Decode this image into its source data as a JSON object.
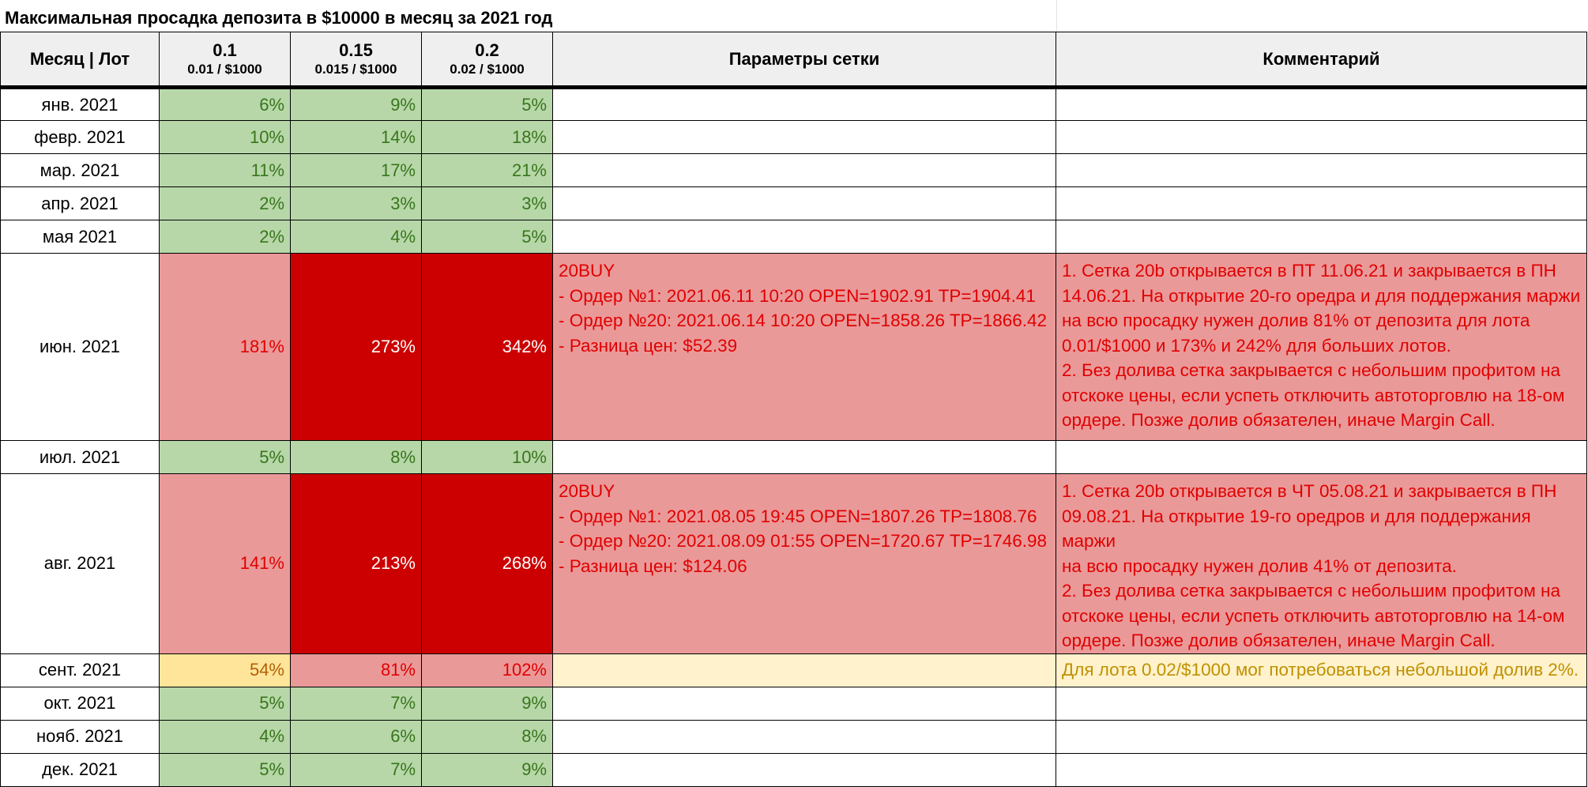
{
  "title": "Максимальная просадка депозита в $10000 в месяц за 2021 год",
  "header": {
    "month_lot": "Месяц | Лот",
    "lots": [
      {
        "lot": "0.1",
        "sub": "0.01 / $1000"
      },
      {
        "lot": "0.15",
        "sub": "0.015 / $1000"
      },
      {
        "lot": "0.2",
        "sub": "0.02 / $1000"
      }
    ],
    "params": "Параметры сетки",
    "comment": "Комментарий"
  },
  "rows": [
    {
      "month": "янв. 2021",
      "v": [
        "6%",
        "9%",
        "5%"
      ]
    },
    {
      "month": "февр. 2021",
      "v": [
        "10%",
        "14%",
        "18%"
      ]
    },
    {
      "month": "мар. 2021",
      "v": [
        "11%",
        "17%",
        "21%"
      ]
    },
    {
      "month": "апр. 2021",
      "v": [
        "2%",
        "3%",
        "3%"
      ]
    },
    {
      "month": "мая 2021",
      "v": [
        "2%",
        "4%",
        "5%"
      ]
    },
    {
      "month": "июн. 2021",
      "v": [
        "181%",
        "273%",
        "342%"
      ],
      "params": [
        "20BUY",
        "- Ордер №1: 2021.06.11 10:20 OPEN=1902.91 TP=1904.41",
        "- Ордер №20: 2021.06.14 10:20 OPEN=1858.26 TP=1866.42",
        "- Разница цен: $52.39"
      ],
      "comment": [
        "1. Сетка 20b открывается в ПТ 11.06.21 и закрывается в ПН",
        "14.06.21. На открытие 20-го оредра и для поддержания маржи",
        "на всю просадку нужен долив 81% от депозита для лота",
        "0.01/$1000 и 173% и 242% для больших лотов.",
        "2. Без долива сетка закрывается с небольшим профитом на",
        "отскоке цены, если успеть отключить автоторговлю на 18-ом",
        "ордере. Позже долив обязателен, иначе Margin Call."
      ]
    },
    {
      "month": "июл. 2021",
      "v": [
        "5%",
        "8%",
        "10%"
      ]
    },
    {
      "month": "авг. 2021",
      "v": [
        "141%",
        "213%",
        "268%"
      ],
      "params": [
        "20BUY",
        "- Ордер №1: 2021.08.05 19:45 OPEN=1807.26 TP=1808.76",
        "- Ордер №20: 2021.08.09 01:55 OPEN=1720.67 TP=1746.98",
        "- Разница цен: $124.06"
      ],
      "comment": [
        "1. Сетка 20b открывается в ЧТ 05.08.21 и закрывается в ПН",
        "09.08.21. На открытие 19-го оредров и для поддержания маржи",
        "на всю просадку нужен долив 41% от депозита.",
        "2. Без долива сетка закрывается с небольшим профитом на",
        "отскоке цены, если успеть отключить автоторговлю на 14-ом",
        "ордере. Позже долив обязателен, иначе Margin Call."
      ]
    },
    {
      "month": "сент. 2021",
      "v": [
        "54%",
        "81%",
        "102%"
      ],
      "comment": [
        "Для лота 0.02/$1000 мог потребоваться небольшой долив 2%."
      ]
    },
    {
      "month": "окт. 2021",
      "v": [
        "5%",
        "7%",
        "9%"
      ]
    },
    {
      "month": "нояб. 2021",
      "v": [
        "4%",
        "6%",
        "8%"
      ]
    },
    {
      "month": "дек. 2021",
      "v": [
        "5%",
        "7%",
        "9%"
      ]
    }
  ],
  "colors": {
    "green_fill": "#b7d7a8",
    "green_text": "#38761d",
    "pink_fill": "#ea9999",
    "red_text": "#e00000",
    "dark_red_fill": "#cc0000",
    "yellow_fill": "#ffe599",
    "light_yellow_fill": "#fff2cc",
    "header_fill": "#efefef"
  }
}
